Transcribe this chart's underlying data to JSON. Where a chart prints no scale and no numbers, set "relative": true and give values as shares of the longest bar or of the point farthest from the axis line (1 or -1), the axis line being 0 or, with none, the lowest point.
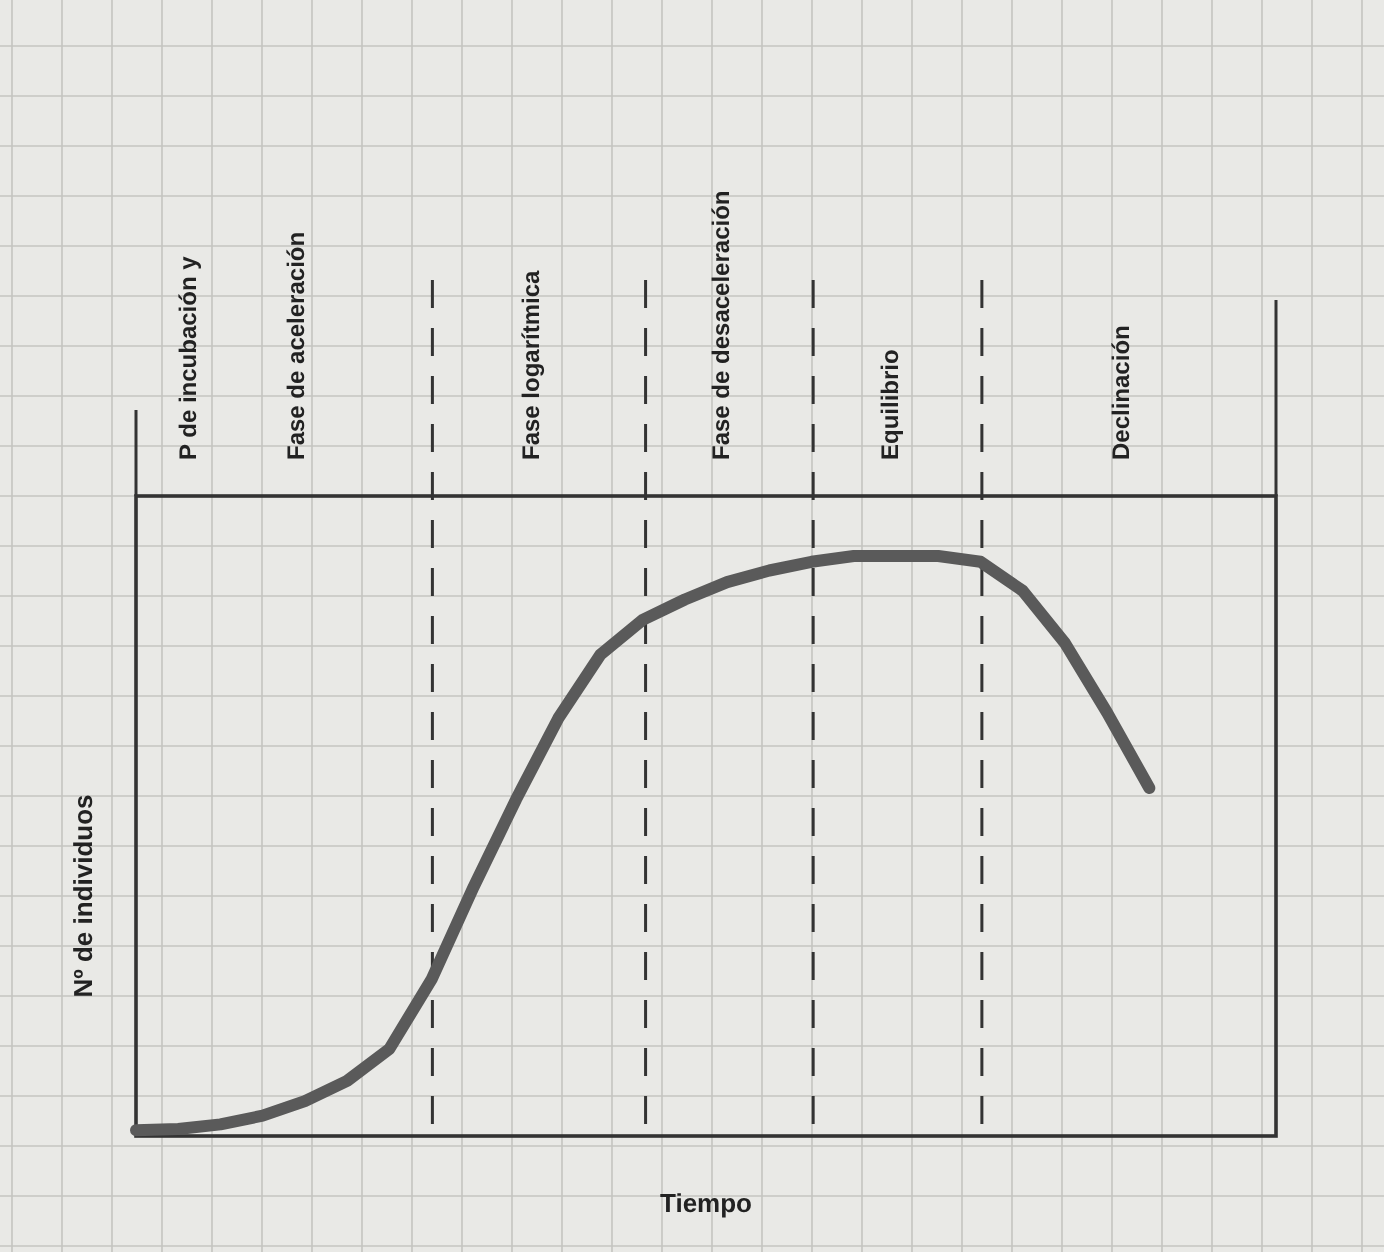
{
  "chart_data": {
    "type": "line",
    "relative": true,
    "xlabel": "Tiempo",
    "ylabel": "Nº de individuos",
    "categories": [
      null,
      null,
      null,
      null,
      null,
      null,
      null,
      null,
      null,
      null,
      null,
      null,
      null,
      null,
      null,
      null,
      null,
      null,
      null,
      null,
      null,
      null,
      null,
      null,
      null
    ],
    "marker": "none",
    "grid": true,
    "line_style": "solid",
    "series": [
      {
        "color": "#5a5a5a",
        "values": [
          0.01,
          0.012,
          0.02,
          0.035,
          0.06,
          0.095,
          0.15,
          0.27,
          0.43,
          0.58,
          0.72,
          0.83,
          0.89,
          0.925,
          0.955,
          0.975,
          0.99,
          1,
          1,
          1,
          0.99,
          0.94,
          0.85,
          0.73,
          0.6
        ]
      }
    ],
    "annotations": [
      "P de incubación y Fase de aceleración",
      "Fase logarítmica",
      "Fase de desaceleración",
      "Equilibrio",
      "Declinación"
    ]
  }
}
